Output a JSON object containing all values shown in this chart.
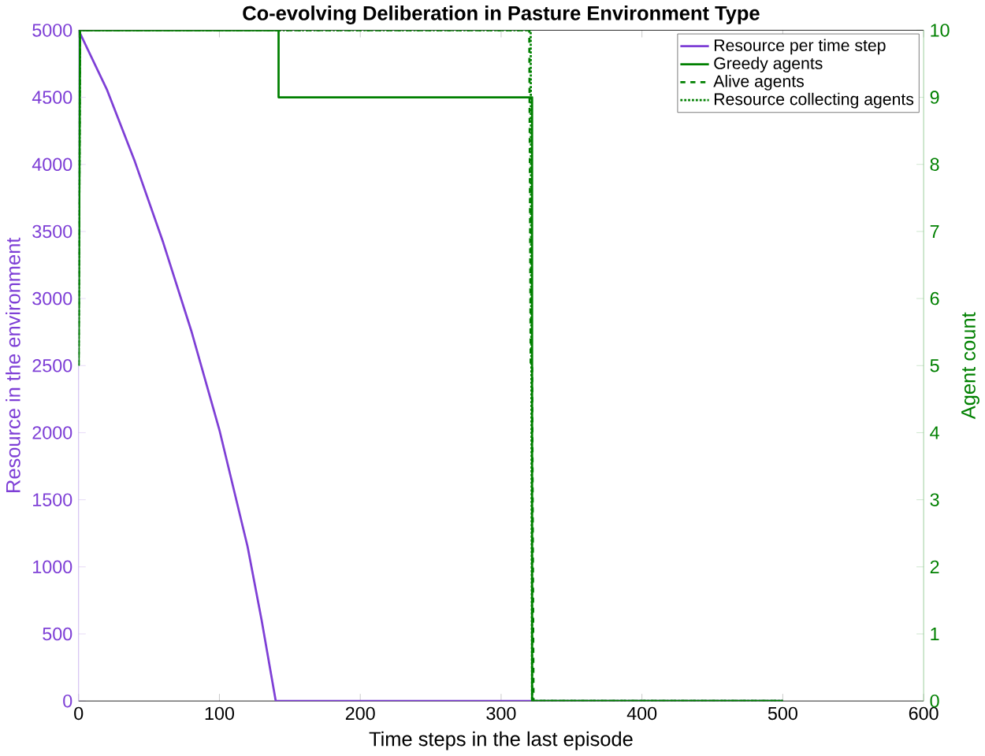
{
  "chart_data": {
    "type": "line",
    "title": "Co-evolving Deliberation in Pasture Environment Type",
    "xlabel": "Time steps in the last episode",
    "ylabel": "Resource in the environment",
    "y2label": "Agent count",
    "series": [
      {
        "name": "Resource per time step",
        "color": "#7e3fd6",
        "line_style": "solid",
        "x": [
          0,
          20,
          40,
          60,
          80,
          100,
          120,
          130,
          140,
          200,
          300,
          400,
          500
        ],
        "values": [
          5000,
          4560,
          4020,
          3420,
          2760,
          2020,
          1150,
          600,
          0,
          0,
          0,
          0,
          0
        ]
      },
      {
        "name": "Greedy agents",
        "color": "#008000",
        "axis": "y2",
        "line_style": "solid",
        "x": [
          0,
          1,
          142,
          142,
          322,
          322,
          500
        ],
        "values": [
          5,
          10,
          10,
          9,
          9,
          0,
          0
        ]
      },
      {
        "name": "Alive agents",
        "color": "#008000",
        "axis": "y2",
        "line_style": "dashed",
        "x": [
          0,
          1,
          320,
          321,
          322,
          323,
          500
        ],
        "values": [
          5,
          10,
          10,
          5,
          5,
          0,
          0
        ]
      },
      {
        "name": "Resource collecting agents",
        "color": "#008000",
        "axis": "y2",
        "line_style": "dotted",
        "x": [
          0,
          1,
          321,
          322,
          500
        ],
        "values": [
          5,
          10,
          10,
          0,
          0
        ]
      }
    ],
    "xlim": [
      0,
      600
    ],
    "xticks": [
      0,
      100,
      200,
      300,
      400,
      500,
      600
    ],
    "ylim": [
      0,
      5000
    ],
    "yticks": [
      0,
      500,
      1000,
      1500,
      2000,
      2500,
      3000,
      3500,
      4000,
      4500,
      5000
    ],
    "y2lim": [
      0,
      10
    ],
    "y2ticks": [
      0,
      1,
      2,
      3,
      4,
      5,
      6,
      7,
      8,
      9,
      10
    ],
    "legend": "top right",
    "grid": false
  }
}
